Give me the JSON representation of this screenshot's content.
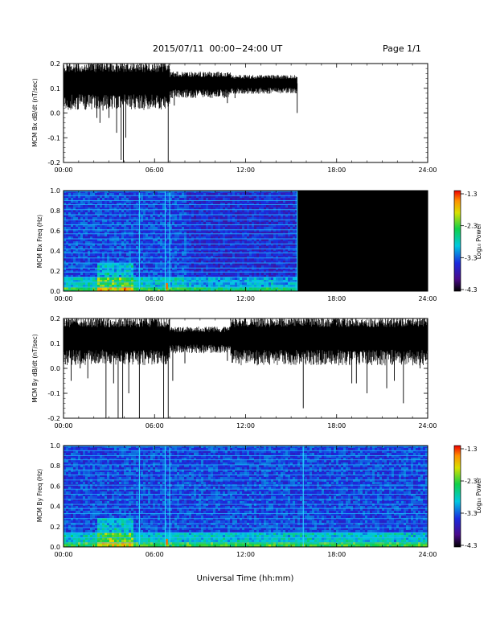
{
  "header": {
    "title": "2015/07/11  00:00−24:00 UT",
    "page": "Page 1/1"
  },
  "time_ticks": [
    "00:00",
    "06:00",
    "12:00",
    "18:00",
    "24:00"
  ],
  "x_axis_label": "Universal Time (hh:mm)",
  "colorbar": {
    "label": "Log₁₀ Power",
    "ticks": [
      "-1.3",
      "-2.3",
      "-3.3",
      "-4.3"
    ]
  },
  "chart_data": [
    {
      "type": "line",
      "panel": "bx-timeseries",
      "ylabel": "MCM Bx dB/dt (nT/sec)",
      "ylim": [
        -0.2,
        0.2
      ],
      "y_ticks": [
        "0.2",
        "0.1",
        "0.0",
        "-0.1",
        "-0.2"
      ],
      "xlim_hours": [
        0,
        24
      ],
      "data_end_hour": 15.4,
      "baseline": 0.12,
      "spikes": [
        {
          "hour": 0.5,
          "value": 0.02
        },
        {
          "hour": 1.2,
          "value": 0.05
        },
        {
          "hour": 2.2,
          "value": -0.02
        },
        {
          "hour": 2.4,
          "value": -0.04
        },
        {
          "hour": 2.6,
          "value": 0.01
        },
        {
          "hour": 3.0,
          "value": -0.02
        },
        {
          "hour": 3.5,
          "value": -0.08
        },
        {
          "hour": 3.8,
          "value": -0.19
        },
        {
          "hour": 3.95,
          "value": -0.2
        },
        {
          "hour": 4.1,
          "value": -0.1
        },
        {
          "hour": 4.5,
          "value": 0.03
        },
        {
          "hour": 5.2,
          "value": 0.02
        },
        {
          "hour": 6.6,
          "value": 0.03
        },
        {
          "hour": 6.9,
          "value": -0.2
        },
        {
          "hour": 7.3,
          "value": 0.03
        },
        {
          "hour": 10.8,
          "value": 0.04
        },
        {
          "hour": 11.3,
          "value": 0.06
        },
        {
          "hour": 15.4,
          "value": 0.0
        }
      ]
    },
    {
      "type": "heatmap",
      "panel": "bx-spectrogram",
      "ylabel": "MCM Bx Freq (Hz)",
      "ylim": [
        0.0,
        1.0
      ],
      "y_ticks": [
        "1.0",
        "0.8",
        "0.6",
        "0.4",
        "0.2",
        "0.0"
      ],
      "xlim_hours": [
        0,
        24
      ],
      "data_end_hour": 15.4,
      "clim": [
        -4.3,
        -1.3
      ],
      "harmonic_lines_hz": [
        0.04,
        0.09,
        0.14,
        0.19,
        0.23,
        0.28,
        0.33,
        0.38,
        0.42,
        0.47,
        0.52,
        0.57,
        0.61,
        0.66,
        0.71,
        0.76,
        0.81,
        0.86,
        0.9,
        0.95,
        0.99
      ],
      "vertical_lines_hours": [
        5.0,
        6.7,
        7.0
      ]
    },
    {
      "type": "line",
      "panel": "by-timeseries",
      "ylabel": "MCM By dB/dt (nT/sec)",
      "ylim": [
        -0.2,
        0.2
      ],
      "y_ticks": [
        "0.2",
        "0.1",
        "0.0",
        "-0.1",
        "-0.2"
      ],
      "xlim_hours": [
        0,
        24
      ],
      "data_end_hour": 24,
      "baseline": 0.12,
      "spikes": [
        {
          "hour": 0.5,
          "value": -0.05
        },
        {
          "hour": 1.1,
          "value": 0.0
        },
        {
          "hour": 1.6,
          "value": -0.04
        },
        {
          "hour": 2.1,
          "value": 0.02
        },
        {
          "hour": 2.8,
          "value": -0.2
        },
        {
          "hour": 3.3,
          "value": -0.06
        },
        {
          "hour": 3.6,
          "value": -0.2
        },
        {
          "hour": 3.9,
          "value": -0.2
        },
        {
          "hour": 4.3,
          "value": -0.1
        },
        {
          "hour": 5.0,
          "value": -0.2
        },
        {
          "hour": 5.6,
          "value": 0.02
        },
        {
          "hour": 6.6,
          "value": -0.2
        },
        {
          "hour": 6.9,
          "value": -0.2
        },
        {
          "hour": 7.2,
          "value": -0.05
        },
        {
          "hour": 8.0,
          "value": 0.02
        },
        {
          "hour": 10.8,
          "value": 0.03
        },
        {
          "hour": 13.4,
          "value": 0.05
        },
        {
          "hour": 14.2,
          "value": 0.03
        },
        {
          "hour": 15.8,
          "value": -0.16
        },
        {
          "hour": 17.5,
          "value": 0.04
        },
        {
          "hour": 19.0,
          "value": -0.06
        },
        {
          "hour": 19.3,
          "value": -0.06
        },
        {
          "hour": 20.0,
          "value": -0.1
        },
        {
          "hour": 21.3,
          "value": -0.08
        },
        {
          "hour": 21.8,
          "value": -0.05
        },
        {
          "hour": 22.4,
          "value": -0.14
        },
        {
          "hour": 23.5,
          "value": 0.0
        }
      ]
    },
    {
      "type": "heatmap",
      "panel": "by-spectrogram",
      "ylabel": "MCM By Freq (Hz)",
      "ylim": [
        0.0,
        1.0
      ],
      "y_ticks": [
        "1.0",
        "0.8",
        "0.6",
        "0.4",
        "0.2",
        "0.0"
      ],
      "xlim_hours": [
        0,
        24
      ],
      "data_end_hour": 24,
      "clim": [
        -4.3,
        -1.3
      ],
      "harmonic_lines_hz": [
        0.04,
        0.09,
        0.14,
        0.19,
        0.23,
        0.28,
        0.33,
        0.38,
        0.42,
        0.47,
        0.52,
        0.57,
        0.61,
        0.66,
        0.71,
        0.76,
        0.81,
        0.86,
        0.9,
        0.95,
        0.99
      ],
      "vertical_lines_hours": [
        5.0,
        6.7,
        7.0,
        15.8
      ]
    }
  ]
}
